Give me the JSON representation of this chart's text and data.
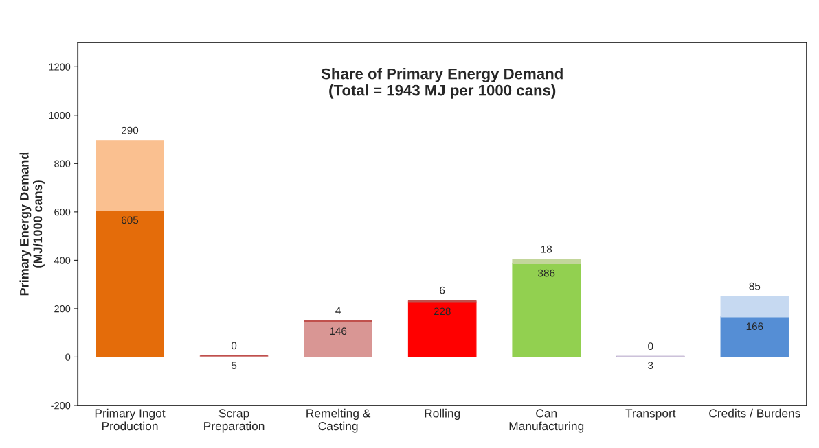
{
  "chart_data": {
    "type": "bar",
    "stacked": true,
    "title": "Share of Primary Energy Demand\n(Total = 1943 MJ per 1000 cans)",
    "ylabel": "Primary Energy Demand\n(MJ/1000 cans)",
    "categories": [
      "Primary Ingot\nProduction",
      "Scrap\nPreparation",
      "Remelting &\nCasting",
      "Rolling",
      "Can\nManufacturing",
      "Transport",
      "Credits / Burdens"
    ],
    "series": [
      {
        "values": [
          605,
          5,
          146,
          228,
          386,
          3,
          166
        ],
        "colors": [
          "#e46c0a",
          "#d99694",
          "#d99694",
          "#ff0000",
          "#92d050",
          "#b3a2c7",
          "#558ed5"
        ]
      },
      {
        "values": [
          290,
          0,
          4,
          6,
          18,
          0,
          85
        ],
        "colors": [
          "#fac090",
          "#c0504d",
          "#c0504d",
          "#c0504d",
          "#c3d69b",
          "#ccc1da",
          "#c6d9f1"
        ]
      }
    ],
    "ylim": [
      -200,
      1300
    ],
    "yticks": [
      -200,
      0,
      200,
      400,
      600,
      800,
      1000,
      1200
    ],
    "ref_lines": [
      {
        "axis": "y",
        "value": 0,
        "color": "#888888"
      }
    ],
    "data_labels": true
  }
}
